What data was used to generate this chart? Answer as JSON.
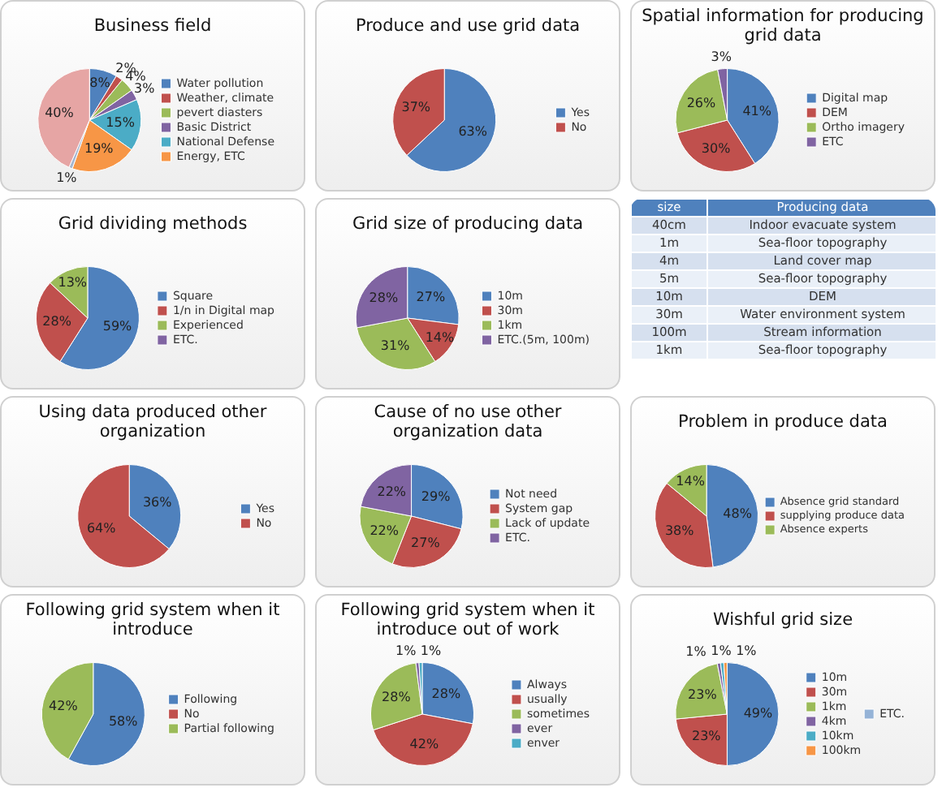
{
  "chart_data": [
    {
      "type": "pie",
      "title": "Business field",
      "legend": "right",
      "categories": [
        "Water pollution",
        "Weather, climate",
        "pevert diasters",
        "Basic District",
        "National Defense",
        "Energy, ETC",
        null,
        null
      ],
      "values": [
        8,
        2,
        4,
        3,
        15,
        19,
        1,
        40
      ],
      "value_labels": [
        "8%",
        "2%",
        "4%",
        "3%",
        "15%",
        "19%",
        "1%",
        "40%"
      ],
      "colors": [
        "#4f81bd",
        "#c0504d",
        "#9bbb59",
        "#8064a2",
        "#4bacc6",
        "#f79646",
        "#a5b6d0",
        "#e6a5a4"
      ]
    },
    {
      "type": "pie",
      "title": "Produce and use grid data",
      "legend": "right",
      "categories": [
        "Yes",
        "No"
      ],
      "values": [
        63,
        37
      ],
      "value_labels": [
        "63%",
        "37%"
      ],
      "colors": [
        "#4f81bd",
        "#c0504d"
      ]
    },
    {
      "type": "pie",
      "title": "Spatial information for producing grid data",
      "legend": "right",
      "categories": [
        "Digital map",
        "DEM",
        "Ortho imagery",
        "ETC"
      ],
      "values": [
        41,
        30,
        26,
        3
      ],
      "value_labels": [
        "41%",
        "30%",
        "26%",
        "3%"
      ],
      "colors": [
        "#4f81bd",
        "#c0504d",
        "#9bbb59",
        "#8064a2"
      ]
    },
    {
      "type": "pie",
      "title": "Grid dividing methods",
      "legend": "right",
      "categories": [
        "Square",
        "1/n in Digital map",
        "Experienced",
        "ETC."
      ],
      "values": [
        59,
        28,
        13,
        0
      ],
      "value_labels": [
        "59%",
        "28%",
        "13%",
        null
      ],
      "colors": [
        "#4f81bd",
        "#c0504d",
        "#9bbb59",
        "#8064a2"
      ]
    },
    {
      "type": "pie",
      "title": "Grid size of producing data",
      "legend": "right",
      "categories": [
        "10m",
        "30m",
        "1km",
        "ETC.(5m, 100m)"
      ],
      "values": [
        27,
        14,
        31,
        28
      ],
      "value_labels": [
        "27%",
        "14%",
        "31%",
        "28%"
      ],
      "colors": [
        "#4f81bd",
        "#c0504d",
        "#9bbb59",
        "#8064a2"
      ]
    },
    {
      "type": "other",
      "categories": [
        "size",
        "Producing data"
      ],
      "cell_labels": [
        [
          "40cm",
          "Indoor evacuate system"
        ],
        [
          "1m",
          "Sea-floor topography"
        ],
        [
          "4m",
          "Land cover map"
        ],
        [
          "5m",
          "Sea-floor topography"
        ],
        [
          "10m",
          "DEM"
        ],
        [
          "30m",
          "Water environment system"
        ],
        [
          "100m",
          "Stream information"
        ],
        [
          "1km",
          "Sea-floor topography"
        ]
      ]
    },
    {
      "type": "pie",
      "title": "Using data produced other organization",
      "legend": "right",
      "categories": [
        "Yes",
        "No"
      ],
      "values": [
        36,
        64
      ],
      "value_labels": [
        "36%",
        "64%"
      ],
      "colors": [
        "#4f81bd",
        "#c0504d"
      ]
    },
    {
      "type": "pie",
      "title": "Cause of no use other organization data",
      "legend": "right",
      "categories": [
        "Not need",
        "System gap",
        "Lack of update",
        "ETC."
      ],
      "values": [
        29,
        27,
        22,
        22
      ],
      "value_labels": [
        "29%",
        "27%",
        "22%",
        "22%"
      ],
      "colors": [
        "#4f81bd",
        "#c0504d",
        "#9bbb59",
        "#8064a2"
      ]
    },
    {
      "type": "pie",
      "title": "Problem in produce data",
      "legend": "right",
      "categories": [
        "Absence grid standard",
        "supplying produce data",
        "Absence experts"
      ],
      "values": [
        48,
        38,
        14
      ],
      "value_labels": [
        "48%",
        "38%",
        "14%"
      ],
      "colors": [
        "#4f81bd",
        "#c0504d",
        "#9bbb59"
      ]
    },
    {
      "type": "pie",
      "title": "Following grid system when it introduce",
      "legend": "right",
      "categories": [
        "Following",
        "No",
        "Partial following"
      ],
      "values": [
        58,
        0,
        42
      ],
      "value_labels": [
        "58%",
        null,
        "42%"
      ],
      "colors": [
        "#4f81bd",
        "#c0504d",
        "#9bbb59"
      ]
    },
    {
      "type": "pie",
      "title": "Following grid system when it introduce out of work",
      "legend": "right",
      "categories": [
        "Always",
        "usually",
        "sometimes",
        "ever",
        "enver"
      ],
      "values": [
        28,
        42,
        28,
        1,
        1
      ],
      "value_labels": [
        "28%",
        "42%",
        "28%",
        "1%",
        "1%"
      ],
      "colors": [
        "#4f81bd",
        "#c0504d",
        "#9bbb59",
        "#8064a2",
        "#4bacc6"
      ]
    },
    {
      "type": "pie",
      "title": "Wishful grid size",
      "legend": "right",
      "categories": [
        "10m",
        "30m",
        "1km",
        "4km",
        "10km",
        "100km",
        "ETC."
      ],
      "values": [
        49,
        23,
        23,
        1,
        1,
        1,
        0
      ],
      "value_labels": [
        "49%",
        "23%",
        "23%",
        "1%",
        "1%",
        "1%",
        null
      ],
      "colors": [
        "#4f81bd",
        "#c0504d",
        "#9bbb59",
        "#8064a2",
        "#4bacc6",
        "#f79646",
        "#95b3d7"
      ]
    }
  ]
}
